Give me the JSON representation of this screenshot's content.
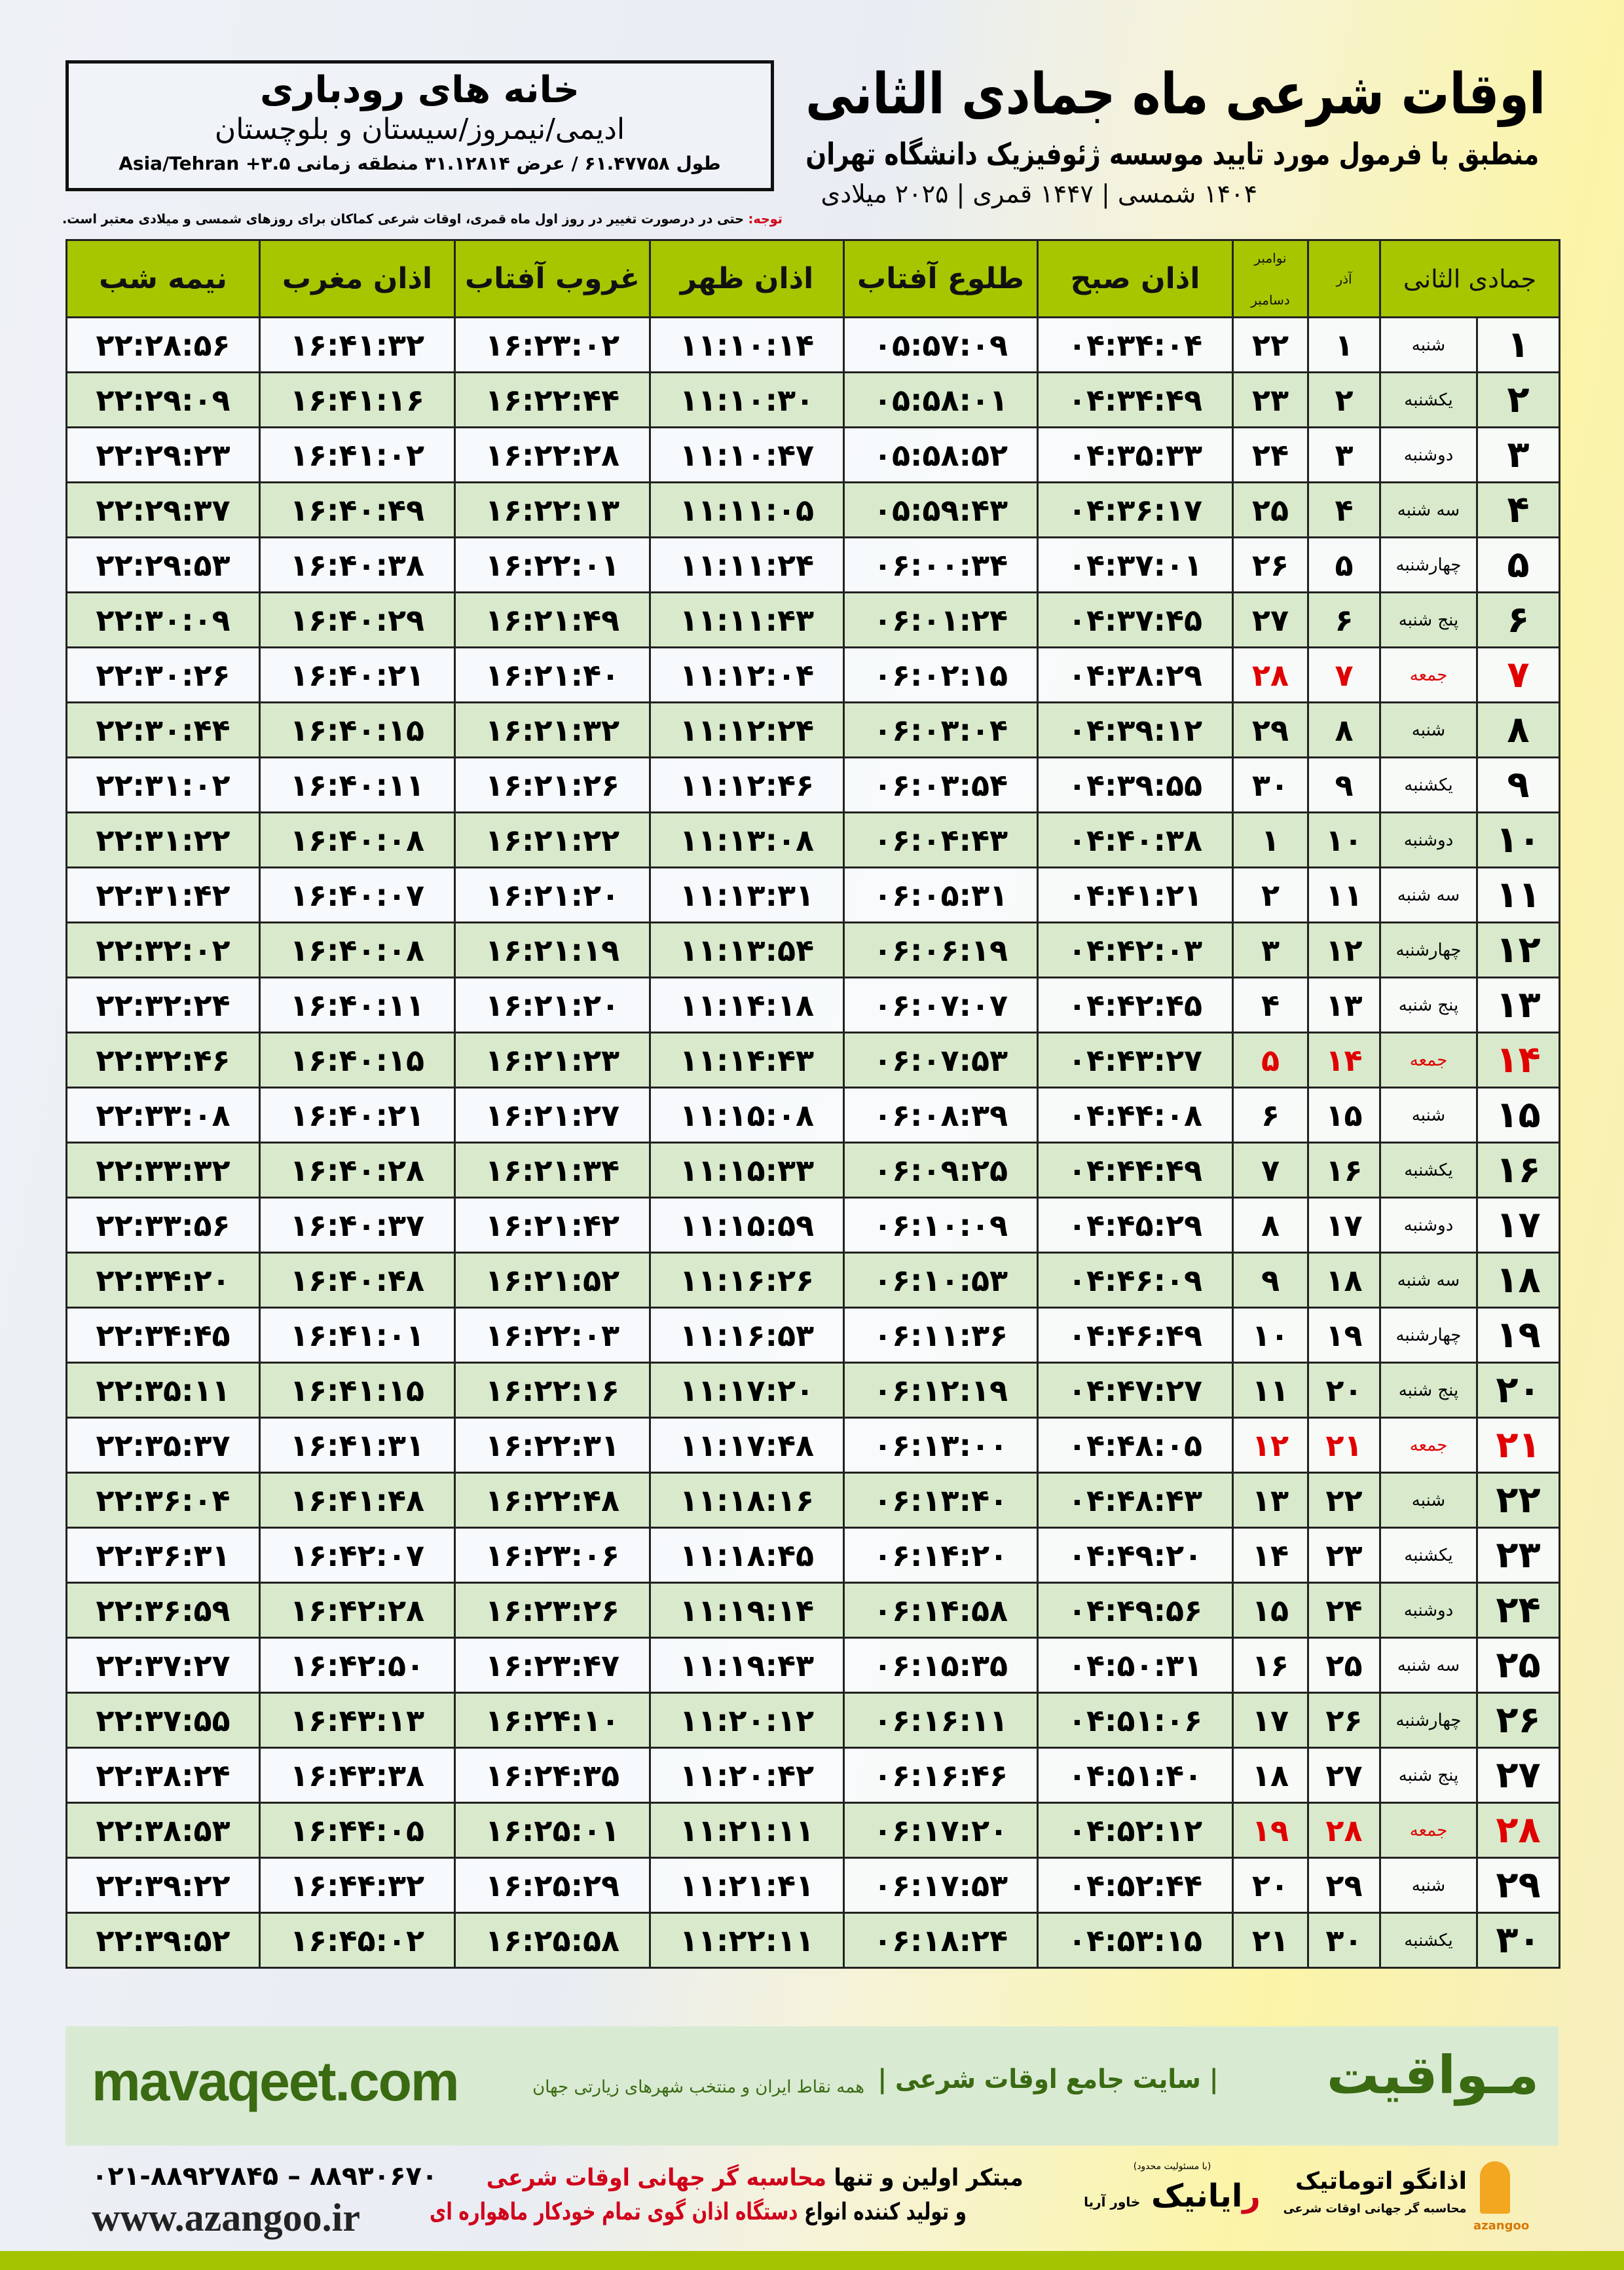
{
  "header": {
    "title": "اوقات شرعی ماه جمادی الثانی",
    "subtitle": "منطبق با فرمول مورد تایید موسسه ژئوفیزیک دانشگاه تهران",
    "years": "۱۴۰۴ شمسی | ۱۴۴۷ قمری | ۲۰۲۵ میلادی"
  },
  "location": {
    "name": "خانه های رودباری",
    "region": "ادیمی/نیمروز/سیستان و بلوچستان",
    "coords": "طول ۶۱.۴۷۷۵۸ / عرض ۳۱.۱۲۸۱۴ منطقه زمانی ۳.۵+ Asia/Tehran"
  },
  "note": {
    "label": "توجه:",
    "text": " حتی در درصورت تغییر در روز اول ماه قمری، اوقات شرعی کماکان برای روزهای شمسی و میلادی معتبر است."
  },
  "table": {
    "headers": {
      "hijri": "جمادی الثانی",
      "azar": "آذر",
      "greg_top": "نوامبر",
      "greg_bottom": "دسامبر",
      "sobh": "اذان صبح",
      "tolu": "طلوع آفتاب",
      "zohr": "اذان ظهر",
      "ghorub": "غروب آفتاب",
      "maghrib": "اذان مغرب",
      "nimeh": "نیمه شب"
    },
    "friday_color": "#e00000",
    "header_color": "#a8c600",
    "rows": [
      [
        "۱",
        "شنبه",
        "۱",
        "۲۲",
        "۰۴:۳۴:۰۴",
        "۰۵:۵۷:۰۹",
        "۱۱:۱۰:۱۴",
        "۱۶:۲۳:۰۲",
        "۱۶:۴۱:۳۲",
        "۲۲:۲۸:۵۶"
      ],
      [
        "۲",
        "یکشنبه",
        "۲",
        "۲۳",
        "۰۴:۳۴:۴۹",
        "۰۵:۵۸:۰۱",
        "۱۱:۱۰:۳۰",
        "۱۶:۲۲:۴۴",
        "۱۶:۴۱:۱۶",
        "۲۲:۲۹:۰۹"
      ],
      [
        "۳",
        "دوشنبه",
        "۳",
        "۲۴",
        "۰۴:۳۵:۳۳",
        "۰۵:۵۸:۵۲",
        "۱۱:۱۰:۴۷",
        "۱۶:۲۲:۲۸",
        "۱۶:۴۱:۰۲",
        "۲۲:۲۹:۲۳"
      ],
      [
        "۴",
        "سه شنبه",
        "۴",
        "۲۵",
        "۰۴:۳۶:۱۷",
        "۰۵:۵۹:۴۳",
        "۱۱:۱۱:۰۵",
        "۱۶:۲۲:۱۳",
        "۱۶:۴۰:۴۹",
        "۲۲:۲۹:۳۷"
      ],
      [
        "۵",
        "چهارشنبه",
        "۵",
        "۲۶",
        "۰۴:۳۷:۰۱",
        "۰۶:۰۰:۳۴",
        "۱۱:۱۱:۲۴",
        "۱۶:۲۲:۰۱",
        "۱۶:۴۰:۳۸",
        "۲۲:۲۹:۵۳"
      ],
      [
        "۶",
        "پنج شنبه",
        "۶",
        "۲۷",
        "۰۴:۳۷:۴۵",
        "۰۶:۰۱:۲۴",
        "۱۱:۱۱:۴۳",
        "۱۶:۲۱:۴۹",
        "۱۶:۴۰:۲۹",
        "۲۲:۳۰:۰۹"
      ],
      [
        "۷",
        "جمعه",
        "۷",
        "۲۸",
        "۰۴:۳۸:۲۹",
        "۰۶:۰۲:۱۵",
        "۱۱:۱۲:۰۴",
        "۱۶:۲۱:۴۰",
        "۱۶:۴۰:۲۱",
        "۲۲:۳۰:۲۶"
      ],
      [
        "۸",
        "شنبه",
        "۸",
        "۲۹",
        "۰۴:۳۹:۱۲",
        "۰۶:۰۳:۰۴",
        "۱۱:۱۲:۲۴",
        "۱۶:۲۱:۳۲",
        "۱۶:۴۰:۱۵",
        "۲۲:۳۰:۴۴"
      ],
      [
        "۹",
        "یکشنبه",
        "۹",
        "۳۰",
        "۰۴:۳۹:۵۵",
        "۰۶:۰۳:۵۴",
        "۱۱:۱۲:۴۶",
        "۱۶:۲۱:۲۶",
        "۱۶:۴۰:۱۱",
        "۲۲:۳۱:۰۲"
      ],
      [
        "۱۰",
        "دوشنبه",
        "۱۰",
        "۱",
        "۰۴:۴۰:۳۸",
        "۰۶:۰۴:۴۳",
        "۱۱:۱۳:۰۸",
        "۱۶:۲۱:۲۲",
        "۱۶:۴۰:۰۸",
        "۲۲:۳۱:۲۲"
      ],
      [
        "۱۱",
        "سه شنبه",
        "۱۱",
        "۲",
        "۰۴:۴۱:۲۱",
        "۰۶:۰۵:۳۱",
        "۱۱:۱۳:۳۱",
        "۱۶:۲۱:۲۰",
        "۱۶:۴۰:۰۷",
        "۲۲:۳۱:۴۲"
      ],
      [
        "۱۲",
        "چهارشنبه",
        "۱۲",
        "۳",
        "۰۴:۴۲:۰۳",
        "۰۶:۰۶:۱۹",
        "۱۱:۱۳:۵۴",
        "۱۶:۲۱:۱۹",
        "۱۶:۴۰:۰۸",
        "۲۲:۳۲:۰۲"
      ],
      [
        "۱۳",
        "پنج شنبه",
        "۱۳",
        "۴",
        "۰۴:۴۲:۴۵",
        "۰۶:۰۷:۰۷",
        "۱۱:۱۴:۱۸",
        "۱۶:۲۱:۲۰",
        "۱۶:۴۰:۱۱",
        "۲۲:۳۲:۲۴"
      ],
      [
        "۱۴",
        "جمعه",
        "۱۴",
        "۵",
        "۰۴:۴۳:۲۷",
        "۰۶:۰۷:۵۳",
        "۱۱:۱۴:۴۳",
        "۱۶:۲۱:۲۳",
        "۱۶:۴۰:۱۵",
        "۲۲:۳۲:۴۶"
      ],
      [
        "۱۵",
        "شنبه",
        "۱۵",
        "۶",
        "۰۴:۴۴:۰۸",
        "۰۶:۰۸:۳۹",
        "۱۱:۱۵:۰۸",
        "۱۶:۲۱:۲۷",
        "۱۶:۴۰:۲۱",
        "۲۲:۳۳:۰۸"
      ],
      [
        "۱۶",
        "یکشنبه",
        "۱۶",
        "۷",
        "۰۴:۴۴:۴۹",
        "۰۶:۰۹:۲۵",
        "۱۱:۱۵:۳۳",
        "۱۶:۲۱:۳۴",
        "۱۶:۴۰:۲۸",
        "۲۲:۳۳:۳۲"
      ],
      [
        "۱۷",
        "دوشنبه",
        "۱۷",
        "۸",
        "۰۴:۴۵:۲۹",
        "۰۶:۱۰:۰۹",
        "۱۱:۱۵:۵۹",
        "۱۶:۲۱:۴۲",
        "۱۶:۴۰:۳۷",
        "۲۲:۳۳:۵۶"
      ],
      [
        "۱۸",
        "سه شنبه",
        "۱۸",
        "۹",
        "۰۴:۴۶:۰۹",
        "۰۶:۱۰:۵۳",
        "۱۱:۱۶:۲۶",
        "۱۶:۲۱:۵۲",
        "۱۶:۴۰:۴۸",
        "۲۲:۳۴:۲۰"
      ],
      [
        "۱۹",
        "چهارشنبه",
        "۱۹",
        "۱۰",
        "۰۴:۴۶:۴۹",
        "۰۶:۱۱:۳۶",
        "۱۱:۱۶:۵۳",
        "۱۶:۲۲:۰۳",
        "۱۶:۴۱:۰۱",
        "۲۲:۳۴:۴۵"
      ],
      [
        "۲۰",
        "پنج شنبه",
        "۲۰",
        "۱۱",
        "۰۴:۴۷:۲۷",
        "۰۶:۱۲:۱۹",
        "۱۱:۱۷:۲۰",
        "۱۶:۲۲:۱۶",
        "۱۶:۴۱:۱۵",
        "۲۲:۳۵:۱۱"
      ],
      [
        "۲۱",
        "جمعه",
        "۲۱",
        "۱۲",
        "۰۴:۴۸:۰۵",
        "۰۶:۱۳:۰۰",
        "۱۱:۱۷:۴۸",
        "۱۶:۲۲:۳۱",
        "۱۶:۴۱:۳۱",
        "۲۲:۳۵:۳۷"
      ],
      [
        "۲۲",
        "شنبه",
        "۲۲",
        "۱۳",
        "۰۴:۴۸:۴۳",
        "۰۶:۱۳:۴۰",
        "۱۱:۱۸:۱۶",
        "۱۶:۲۲:۴۸",
        "۱۶:۴۱:۴۸",
        "۲۲:۳۶:۰۴"
      ],
      [
        "۲۳",
        "یکشنبه",
        "۲۳",
        "۱۴",
        "۰۴:۴۹:۲۰",
        "۰۶:۱۴:۲۰",
        "۱۱:۱۸:۴۵",
        "۱۶:۲۳:۰۶",
        "۱۶:۴۲:۰۷",
        "۲۲:۳۶:۳۱"
      ],
      [
        "۲۴",
        "دوشنبه",
        "۲۴",
        "۱۵",
        "۰۴:۴۹:۵۶",
        "۰۶:۱۴:۵۸",
        "۱۱:۱۹:۱۴",
        "۱۶:۲۳:۲۶",
        "۱۶:۴۲:۲۸",
        "۲۲:۳۶:۵۹"
      ],
      [
        "۲۵",
        "سه شنبه",
        "۲۵",
        "۱۶",
        "۰۴:۵۰:۳۱",
        "۰۶:۱۵:۳۵",
        "۱۱:۱۹:۴۳",
        "۱۶:۲۳:۴۷",
        "۱۶:۴۲:۵۰",
        "۲۲:۳۷:۲۷"
      ],
      [
        "۲۶",
        "چهارشنبه",
        "۲۶",
        "۱۷",
        "۰۴:۵۱:۰۶",
        "۰۶:۱۶:۱۱",
        "۱۱:۲۰:۱۲",
        "۱۶:۲۴:۱۰",
        "۱۶:۴۳:۱۳",
        "۲۲:۳۷:۵۵"
      ],
      [
        "۲۷",
        "پنج شنبه",
        "۲۷",
        "۱۸",
        "۰۴:۵۱:۴۰",
        "۰۶:۱۶:۴۶",
        "۱۱:۲۰:۴۲",
        "۱۶:۲۴:۳۵",
        "۱۶:۴۳:۳۸",
        "۲۲:۳۸:۲۴"
      ],
      [
        "۲۸",
        "جمعه",
        "۲۸",
        "۱۹",
        "۰۴:۵۲:۱۲",
        "۰۶:۱۷:۲۰",
        "۱۱:۲۱:۱۱",
        "۱۶:۲۵:۰۱",
        "۱۶:۴۴:۰۵",
        "۲۲:۳۸:۵۳"
      ],
      [
        "۲۹",
        "شنبه",
        "۲۹",
        "۲۰",
        "۰۴:۵۲:۴۴",
        "۰۶:۱۷:۵۳",
        "۱۱:۲۱:۴۱",
        "۱۶:۲۵:۲۹",
        "۱۶:۴۴:۳۲",
        "۲۲:۳۹:۲۲"
      ],
      [
        "۳۰",
        "یکشنبه",
        "۳۰",
        "۲۱",
        "۰۴:۵۳:۱۵",
        "۰۶:۱۸:۲۴",
        "۱۱:۲۲:۱۱",
        "۱۶:۲۵:۵۸",
        "۱۶:۴۵:۰۲",
        "۲۲:۳۹:۵۲"
      ]
    ]
  },
  "footer": {
    "site": "mavaqeet.com",
    "brand": "مـواقیت",
    "brand_sub": "| سایت جامع اوقات شرعی |",
    "brand_sub2": "همه نقاط ایران و منتخب شهرهای زیارتی جهان",
    "phone": "۰۲۱-۸۸۹۲۷۸۴۵ – ۸۸۹۳۰۶۷۰",
    "web": "www.azangoo.ir",
    "promo1a": "مبتکر اولین و تنها ",
    "promo1b": "محاسبه گر جهانی اوقات شرعی",
    "promo2a": "و تولید کننده انواع ",
    "promo2b": "دستگاه اذان گوی تمام خودکار ماهواره ای",
    "logo2_tag": "(با مسئولیت محدود)",
    "logo2_a": "ر",
    "logo2_b": "ایانیک",
    "logo2_c": "خاور آریا",
    "logo1": "اذانگو اتوماتیک",
    "logo1_tag": "محاسبه گر جهانی اوقات شرعی",
    "logo1_en": "azangoo",
    "accent_green": "#3a6a12",
    "band_color": "#d9ead3",
    "red": "#d0021b"
  }
}
